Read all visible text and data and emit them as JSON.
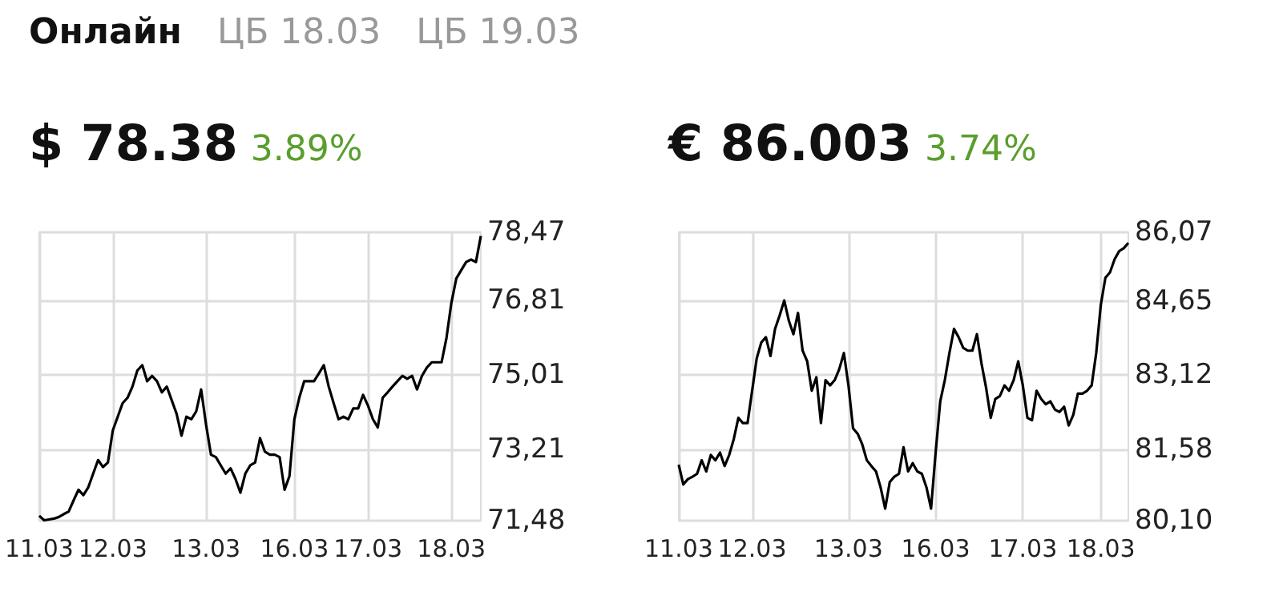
{
  "chart_data": [
    {
      "type": "line",
      "title": "$ 78.38",
      "subtitle": "3.89%",
      "annotations": [
        "Онлайн",
        "ЦБ 18.03",
        "ЦБ 19.03"
      ],
      "categories": [
        "11.03",
        null,
        null,
        null,
        null,
        null,
        null,
        null,
        null,
        null,
        null,
        null,
        null,
        null,
        null,
        "12.03",
        null,
        null,
        null,
        null,
        null,
        null,
        null,
        null,
        null,
        null,
        null,
        null,
        null,
        null,
        null,
        null,
        null,
        null,
        "13.03",
        null,
        null,
        null,
        null,
        null,
        null,
        null,
        null,
        null,
        null,
        null,
        null,
        null,
        null,
        null,
        null,
        null,
        "16.03",
        null,
        null,
        null,
        null,
        null,
        null,
        null,
        null,
        null,
        null,
        null,
        null,
        null,
        null,
        "17.03",
        null,
        null,
        null,
        null,
        null,
        null,
        null,
        null,
        null,
        null,
        null,
        null,
        null,
        null,
        null,
        null,
        "18.03",
        null,
        null,
        null,
        null,
        null,
        null
      ],
      "series": [
        {
          "color": "#000000",
          "values": [
            71.6,
            71.49,
            71.51,
            71.53,
            71.57,
            71.64,
            71.7,
            71.97,
            72.23,
            72.1,
            72.29,
            72.62,
            72.95,
            72.78,
            72.89,
            73.67,
            74.0,
            74.33,
            74.46,
            74.73,
            75.12,
            75.25,
            74.86,
            74.99,
            74.86,
            74.59,
            74.73,
            74.4,
            74.07,
            73.54,
            74.0,
            73.94,
            74.13,
            74.66,
            73.81,
            73.08,
            73.02,
            72.82,
            72.62,
            72.75,
            72.49,
            72.16,
            72.62,
            72.82,
            72.89,
            73.48,
            73.15,
            73.08,
            73.08,
            73.02,
            72.23,
            72.56,
            73.94,
            74.46,
            74.86,
            74.86,
            74.86,
            75.05,
            75.25,
            74.73,
            74.33,
            73.94,
            74.0,
            73.94,
            74.2,
            74.2,
            74.53,
            74.27,
            73.94,
            73.74,
            74.46,
            74.59,
            74.73,
            74.86,
            74.99,
            74.92,
            74.99,
            74.66,
            74.99,
            75.19,
            75.32,
            75.32,
            75.32,
            75.91,
            76.76,
            77.35,
            77.55,
            77.75,
            77.81,
            77.75,
            78.38
          ]
        }
      ],
      "ylim": [
        71.48,
        78.47
      ],
      "yticks": [
        {
          "value": 71.48,
          "label": "71,48"
        },
        {
          "value": 73.21,
          "label": "73,21"
        },
        {
          "value": 75.01,
          "label": "75,01"
        },
        {
          "value": 76.81,
          "label": "76,81"
        },
        {
          "value": 78.47,
          "label": "78,47"
        }
      ],
      "grid": true,
      "marker": "none",
      "line_style": "solid"
    },
    {
      "type": "line",
      "title": "€ 86.003",
      "subtitle": "3.74%",
      "categories": [
        "11.03",
        null,
        null,
        null,
        null,
        null,
        null,
        null,
        null,
        null,
        null,
        null,
        null,
        null,
        null,
        null,
        "12.03",
        null,
        null,
        null,
        null,
        null,
        null,
        null,
        null,
        null,
        null,
        null,
        null,
        null,
        null,
        null,
        null,
        null,
        null,
        null,
        null,
        "13.03",
        null,
        null,
        null,
        null,
        null,
        null,
        null,
        null,
        null,
        null,
        null,
        null,
        null,
        null,
        null,
        null,
        null,
        null,
        "16.03",
        null,
        null,
        null,
        null,
        null,
        null,
        null,
        null,
        null,
        null,
        null,
        null,
        null,
        null,
        null,
        null,
        null,
        null,
        "17.03",
        null,
        null,
        null,
        null,
        null,
        null,
        null,
        null,
        null,
        null,
        null,
        null,
        null,
        null,
        null,
        null,
        "18.03",
        null,
        null,
        null,
        null,
        null,
        null
      ],
      "series": [
        {
          "color": "#000000",
          "values": [
            81.26,
            80.85,
            80.96,
            81.01,
            81.07,
            81.35,
            81.12,
            81.46,
            81.35,
            81.51,
            81.23,
            81.46,
            81.79,
            82.23,
            82.12,
            82.12,
            82.79,
            83.46,
            83.79,
            83.9,
            83.51,
            84.07,
            84.35,
            84.66,
            84.24,
            83.96,
            84.4,
            83.62,
            83.4,
            82.79,
            83.07,
            82.12,
            83.01,
            82.9,
            83.01,
            83.24,
            83.57,
            82.9,
            82.01,
            81.9,
            81.68,
            81.35,
            81.23,
            81.12,
            80.79,
            80.35,
            80.9,
            81.01,
            81.07,
            81.62,
            81.12,
            81.29,
            81.12,
            81.07,
            80.79,
            80.35,
            81.51,
            82.57,
            83.01,
            83.57,
            84.07,
            83.9,
            83.68,
            83.62,
            83.62,
            83.96,
            83.35,
            82.85,
            82.23,
            82.62,
            82.68,
            82.9,
            82.79,
            83.01,
            83.4,
            82.9,
            82.23,
            82.18,
            82.79,
            82.62,
            82.51,
            82.57,
            82.4,
            82.35,
            82.46,
            82.07,
            82.29,
            82.73,
            82.73,
            82.79,
            82.9,
            83.57,
            84.57,
            85.13,
            85.24,
            85.51,
            85.68,
            85.74,
            85.85
          ]
        }
      ],
      "ylim": [
        80.1,
        86.07
      ],
      "yticks": [
        {
          "value": 80.1,
          "label": "80,10"
        },
        {
          "value": 81.58,
          "label": "81,58"
        },
        {
          "value": 83.12,
          "label": "83,12"
        },
        {
          "value": 84.65,
          "label": "84,65"
        },
        {
          "value": 86.07,
          "label": "86,07"
        }
      ],
      "grid": true,
      "marker": "none",
      "line_style": "solid"
    }
  ]
}
